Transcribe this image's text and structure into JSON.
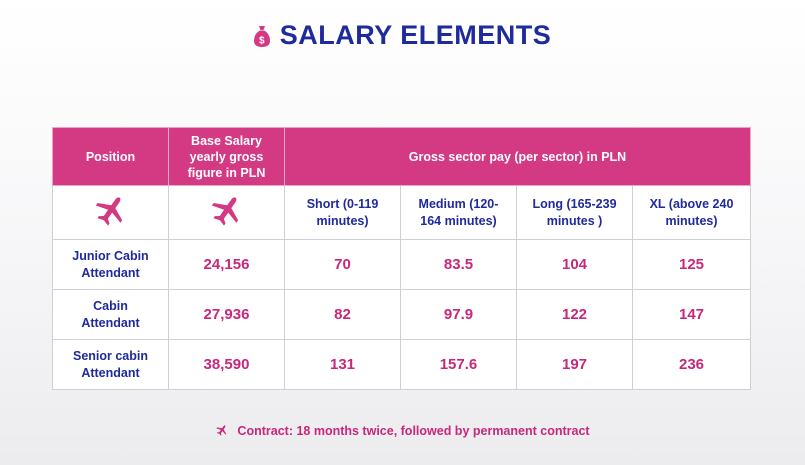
{
  "page": {
    "title": "SALARY ELEMENTS",
    "title_icon": "money-bag-icon",
    "accent_color": "#d43a84",
    "text_color": "#1f2a9c"
  },
  "table": {
    "headers": {
      "position": "Position",
      "base_salary": "Base Salary yearly gross figure in PLN",
      "sector_pay": "Gross sector pay (per sector) in PLN"
    },
    "subheaders": [
      "Short (0-119 minutes)",
      "Medium (120-164 minutes)",
      "Long (165-239 minutes )",
      "XL (above 240 minutes)"
    ],
    "icon_row": [
      "airplane-icon",
      "airplane-icon"
    ],
    "rows": [
      {
        "position": "Junior Cabin Attendant",
        "base": "24,156",
        "short": "70",
        "medium": "83.5",
        "long": "104",
        "xl": "125"
      },
      {
        "position": "Cabin Attendant",
        "base": "27,936",
        "short": "82",
        "medium": "97.9",
        "long": "122",
        "xl": "147"
      },
      {
        "position": "Senior cabin Attendant",
        "base": "38,590",
        "short": "131",
        "medium": "157.6",
        "long": "197",
        "xl": "236"
      }
    ]
  },
  "footer": {
    "icon": "airplane-icon",
    "text": "Contract: 18 months twice, followed by permanent contract"
  }
}
